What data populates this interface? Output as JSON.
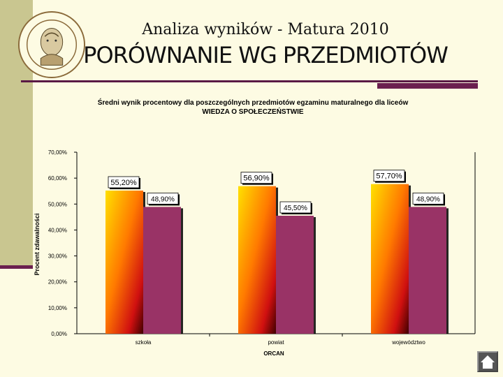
{
  "slide": {
    "subtitle": "Analiza wyników - Matura 2010",
    "title": "PORÓWNANIE WG PRZEDMIOTÓW",
    "logo_icon": "school-seal-icon",
    "nav_icon": "home-icon"
  },
  "chart_data": {
    "type": "bar",
    "title": "Średni wynik procentowy dla poszczególnych przedmiotów egzaminu maturalnego dla liceów",
    "subtitle": "WIEDZA O SPOŁECZEŃSTWIE",
    "ylabel": "Procent zdawalności",
    "xlabel": "ORCAN",
    "ylim": [
      0,
      70
    ],
    "y_ticks": [
      "0,00%",
      "10,00%",
      "20,00%",
      "30,00%",
      "40,00%",
      "50,00%",
      "60,00%",
      "70,00%"
    ],
    "categories": [
      "szkoła",
      "powiat",
      "województwo"
    ],
    "series": [
      {
        "values": [
          55.2,
          56.9,
          57.7
        ],
        "labels": [
          "55,20%",
          "56,90%",
          "57,70%"
        ],
        "color": "#ff9900"
      },
      {
        "values": [
          48.9,
          45.5,
          48.9
        ],
        "labels": [
          "48,90%",
          "45,50%",
          "48,90%"
        ],
        "color": "#993366"
      }
    ],
    "grid": false,
    "legend": "none"
  }
}
